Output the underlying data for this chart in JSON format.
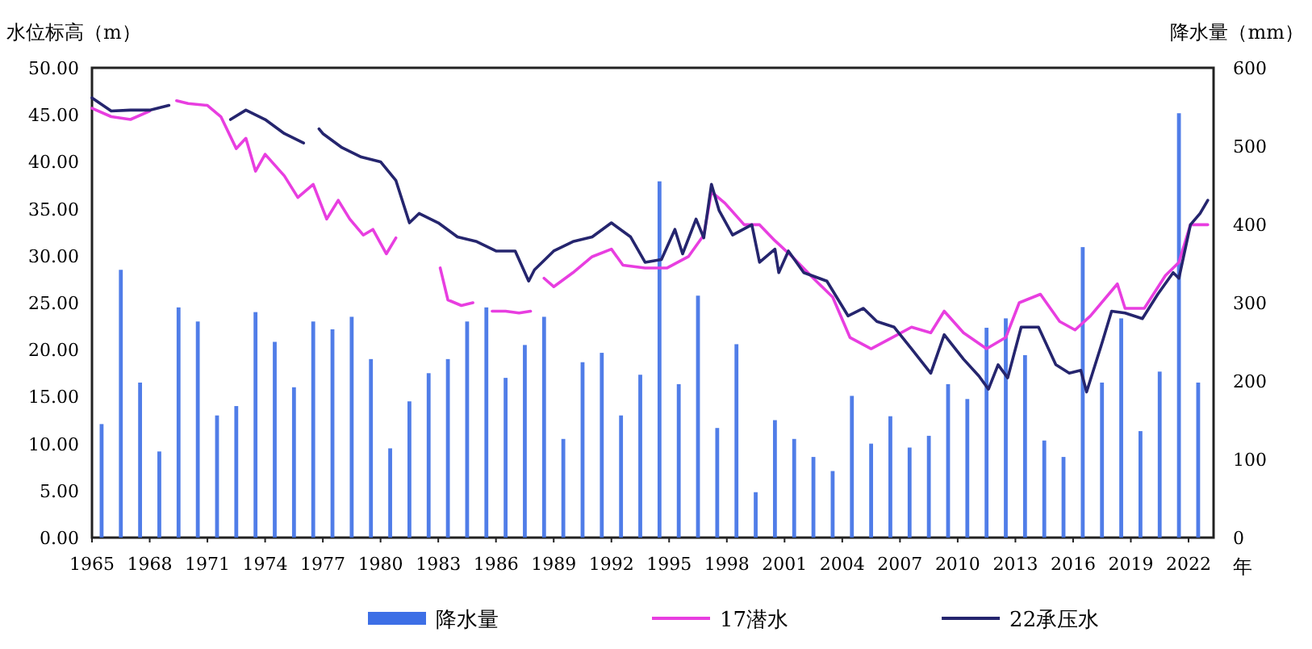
{
  "chart_data": {
    "type": "line",
    "ylabel": "水位标高（m）",
    "y2label": "降水量（mm）",
    "xlabel": "年",
    "xlim": [
      1965,
      2023.3
    ],
    "xticks": [
      1965,
      1968,
      1971,
      1974,
      1977,
      1980,
      1983,
      1986,
      1989,
      1992,
      1995,
      1998,
      2001,
      2004,
      2007,
      2010,
      2013,
      2016,
      2019,
      2022
    ],
    "ylim": [
      0,
      50
    ],
    "yticks": [
      {
        "value": 0,
        "label": "0.00"
      },
      {
        "value": 5,
        "label": "5.00"
      },
      {
        "value": 10,
        "label": "10.00"
      },
      {
        "value": 15,
        "label": "15.00"
      },
      {
        "value": 20,
        "label": "20.00"
      },
      {
        "value": 25,
        "label": "25.00"
      },
      {
        "value": 30,
        "label": "30.00"
      },
      {
        "value": 35,
        "label": "35.00"
      },
      {
        "value": 40,
        "label": "40.00"
      },
      {
        "value": 45,
        "label": "45.00"
      },
      {
        "value": 50,
        "label": "50.00"
      }
    ],
    "y2lim": [
      0,
      600
    ],
    "y2ticks": [
      0,
      100,
      200,
      300,
      400,
      500,
      600
    ],
    "legend": "bottom",
    "series": [
      {
        "name": "降水量",
        "type": "bar",
        "axis": "y2",
        "color": "#3d6fe6",
        "x": [
          1965.5,
          1966.5,
          1967.5,
          1968.5,
          1969.5,
          1970.5,
          1971.5,
          1972.5,
          1973.5,
          1974.5,
          1975.5,
          1976.5,
          1977.5,
          1978.5,
          1979.5,
          1980.5,
          1981.5,
          1982.5,
          1983.5,
          1984.5,
          1985.5,
          1986.5,
          1987.5,
          1988.5,
          1989.5,
          1990.5,
          1991.5,
          1992.5,
          1993.5,
          1994.5,
          1995.5,
          1996.5,
          1997.5,
          1998.5,
          1999.5,
          2000.5,
          2001.5,
          2002.5,
          2003.5,
          2004.5,
          2005.5,
          2006.5,
          2007.5,
          2008.5,
          2009.5,
          2010.5,
          2011.5,
          2012.5,
          2013.5,
          2014.5,
          2015.5,
          2016.5,
          2017.5,
          2018.5,
          2019.5,
          2020.5,
          2021.5,
          2022.5
        ],
        "values": [
          145,
          342,
          198,
          110,
          294,
          276,
          156,
          168,
          288,
          250,
          192,
          276,
          266,
          282,
          228,
          114,
          174,
          210,
          228,
          276,
          294,
          204,
          246,
          282,
          126,
          224,
          236,
          156,
          208,
          455,
          196,
          309,
          140,
          247,
          58,
          150,
          126,
          103,
          85,
          181,
          120,
          155,
          115,
          130,
          196,
          177,
          268,
          280,
          233,
          124,
          103,
          371,
          198,
          280,
          136,
          212,
          542,
          198
        ]
      },
      {
        "name": "17潜水",
        "color": "#e83ee0",
        "x": [
          1965,
          1966,
          1967,
          1968,
          1968.7,
          1969.4,
          1970,
          1971,
          1971.7,
          1972.5,
          1973,
          1973.5,
          1974,
          1975,
          1975.7,
          1976.5,
          1977.2,
          1977.8,
          1978.4,
          1979.1,
          1979.6,
          1980.3,
          1980.8,
          1982,
          1983.1,
          1983.5,
          1984.2,
          1984.8,
          1985.3,
          1985.8,
          1986.5,
          1987.2,
          1987.8,
          1988.2,
          1988.5,
          1989,
          1990,
          1991,
          1992,
          1992.6,
          1993.75,
          1994.9,
          1996,
          1996.8,
          1997.2,
          1997.9,
          1998.9,
          1999.7,
          2000.5,
          2001.4,
          2002.5,
          2003.5,
          2004.4,
          2005.5,
          2006.6,
          2007.6,
          2008.6,
          2009.3,
          2010.3,
          2011.5,
          2012.5,
          2013.2,
          2014.3,
          2015.3,
          2016.1,
          2016.9,
          2018.3,
          2018.7,
          2019.7,
          2020.8,
          2021.5,
          2022.1,
          2023
        ],
        "values": [
          45.7,
          44.8,
          44.5,
          45.4,
          null,
          46.5,
          46.2,
          46,
          44.8,
          41.4,
          42.5,
          39,
          40.8,
          38.5,
          36.2,
          37.6,
          33.9,
          35.9,
          33.9,
          32.2,
          32.8,
          30.2,
          31.9,
          null,
          28.7,
          25.3,
          24.7,
          25,
          null,
          24.1,
          24.1,
          23.9,
          24.1,
          null,
          27.6,
          26.7,
          28.2,
          29.9,
          30.7,
          29,
          28.7,
          28.7,
          29.9,
          32.2,
          36.8,
          35.6,
          33.3,
          33.3,
          31.6,
          29.9,
          27.6,
          25.6,
          21.3,
          20.1,
          21.3,
          22.4,
          21.8,
          24.1,
          21.8,
          20.1,
          21.3,
          25,
          25.9,
          23,
          22.1,
          23.6,
          27,
          24.4,
          24.4,
          27.9,
          29.3,
          33.3,
          33.3
        ]
      },
      {
        "name": "22承压水",
        "color": "#25256e",
        "x": [
          1965,
          1966,
          1967,
          1968,
          1969,
          1970.5,
          1972.2,
          1973,
          1974,
          1975,
          1976,
          1976.3,
          1976.8,
          1977,
          1978,
          1979,
          1980,
          1980.8,
          1981.5,
          1982,
          1983,
          1984,
          1985,
          1986,
          1987,
          1987.7,
          1988,
          1989,
          1990,
          1991,
          1992,
          1993,
          1993.75,
          1994.6,
          1995.3,
          1995.7,
          1996.4,
          1996.8,
          1997.2,
          1997.6,
          1998.3,
          1999.3,
          1999.7,
          2000.5,
          2000.7,
          2001.2,
          2002,
          2003.2,
          2004.3,
          2005.1,
          2005.8,
          2006.7,
          2007.6,
          2008.6,
          2009.3,
          2010.3,
          2011.1,
          2011.6,
          2012.1,
          2012.6,
          2013.3,
          2014.2,
          2015.1,
          2015.8,
          2016.4,
          2016.7,
          2017.5,
          2018,
          2018.7,
          2019.6,
          2020.4,
          2021.2,
          2021.5,
          2022.1,
          2022.6,
          2023
        ],
        "values": [
          46.8,
          45.4,
          45.5,
          45.5,
          46,
          null,
          44.5,
          45.5,
          44.5,
          43,
          42,
          null,
          43.5,
          43,
          41.5,
          40.5,
          40,
          38,
          33.5,
          34.5,
          33.5,
          32,
          31.5,
          30.5,
          30.5,
          27.3,
          28.5,
          30.5,
          31.5,
          32,
          33.5,
          32,
          29.3,
          29.6,
          32.8,
          30.2,
          33.9,
          31.9,
          37.6,
          34.8,
          32.2,
          33.3,
          29.3,
          30.7,
          28.2,
          30.5,
          28.2,
          27.3,
          23.6,
          24.4,
          23,
          22.4,
          20.1,
          17.5,
          21.6,
          19,
          17.2,
          15.8,
          18.4,
          17,
          22.4,
          22.4,
          18.4,
          17.5,
          17.8,
          15.5,
          20.7,
          24.1,
          23.9,
          23.3,
          25.9,
          28.2,
          27.6,
          33.3,
          34.5,
          35.9
        ]
      }
    ]
  }
}
